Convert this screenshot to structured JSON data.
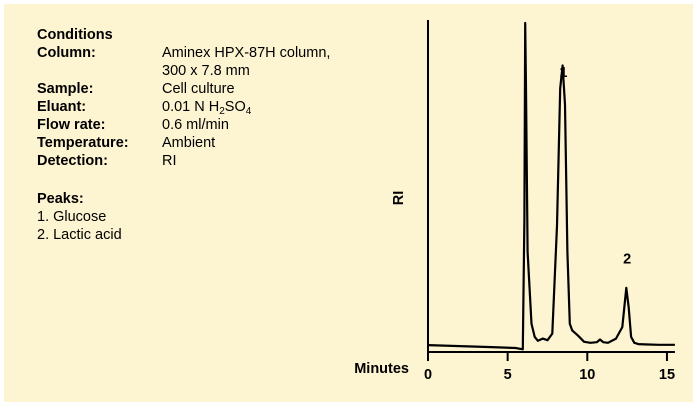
{
  "conditions": {
    "heading": "Conditions",
    "rows": [
      {
        "label": "Column:",
        "value": "Aminex HPX-87H column,"
      },
      {
        "label": "",
        "value": "300 x 7.8 mm"
      },
      {
        "label": "Sample:",
        "value": "Cell culture"
      },
      {
        "label": "Eluant:",
        "value": "0.01 N H",
        "sub1": "2",
        "mid": "SO",
        "sub2": "4"
      },
      {
        "label": "Flow rate:",
        "value": "0.6 ml/min"
      },
      {
        "label": "Temperature:",
        "value": "Ambient"
      },
      {
        "label": "Detection:",
        "value": "RI"
      }
    ]
  },
  "peaks": {
    "heading": "Peaks:",
    "items": [
      "1.  Glucose",
      "2.  Lactic acid"
    ]
  },
  "chart_data": {
    "type": "line",
    "xlabel": "Minutes",
    "ylabel": "RI",
    "xlim": [
      0,
      15.5
    ],
    "ylim": [
      0,
      100
    ],
    "x_ticks": [
      0,
      5,
      10,
      15
    ],
    "peak_labels": [
      {
        "text": "1",
        "x": 8.5,
        "y": 82
      },
      {
        "text": "2",
        "x": 12.5,
        "y": 25
      }
    ],
    "series": [
      {
        "x": [
          0,
          2,
          4,
          5.5,
          5.95,
          6.05,
          6.1,
          6.15,
          6.25,
          6.5,
          6.7,
          6.9,
          7.2,
          7.5,
          7.8,
          8.1,
          8.3,
          8.45,
          8.6,
          8.75,
          8.9,
          9.05,
          9.4,
          9.8,
          10.2,
          10.6,
          10.8,
          11.0,
          11.3,
          11.8,
          12.2,
          12.45,
          12.6,
          12.75,
          12.95,
          13.2,
          13.6,
          14.5,
          15.5
        ],
        "y": [
          1.5,
          1.2,
          0.9,
          0.6,
          0.2,
          40,
          100,
          80,
          30,
          8,
          4,
          2.8,
          3.5,
          3,
          5,
          38,
          80,
          87,
          75,
          30,
          8,
          6,
          4.5,
          2.5,
          2.2,
          2.4,
          3.2,
          2.4,
          2.2,
          3.5,
          7,
          19,
          13,
          4,
          2.2,
          1.8,
          1.7,
          1.6,
          1.6
        ]
      }
    ]
  }
}
